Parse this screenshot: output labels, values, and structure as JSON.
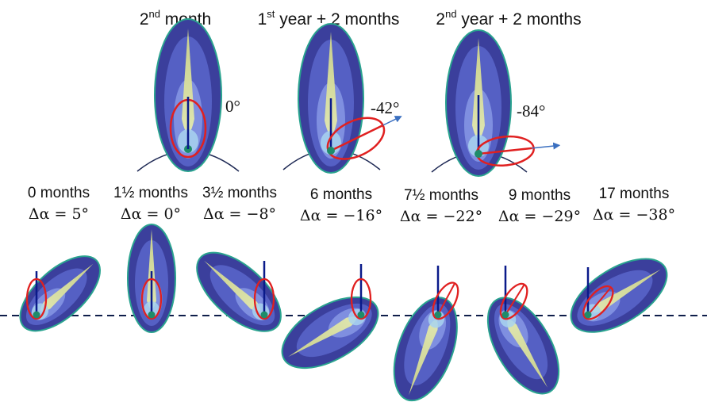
{
  "top_panels": [
    {
      "title_pre": "2",
      "title_sup": "nd",
      "title_post": " month",
      "angle": "0°",
      "tilt": 0
    },
    {
      "title_pre": "1",
      "title_sup": "st",
      "title_post": " year + 2 months",
      "angle": "-42°",
      "tilt": -42
    },
    {
      "title_pre": "2",
      "title_sup": "nd",
      "title_post": " year + 2 months",
      "angle": "-84°",
      "tilt": -84
    }
  ],
  "bottom_panels": [
    {
      "label": "0 months",
      "delta": "Δα = 5°",
      "tilt": 5
    },
    {
      "label": "1½ months",
      "delta": "Δα = 0°",
      "tilt": 0
    },
    {
      "label": "3½ months",
      "delta": "Δα = −8°",
      "tilt": -8
    },
    {
      "label": "6 months",
      "delta": "Δα = −16°",
      "tilt": -16
    },
    {
      "label": "7½ months",
      "delta": "Δα = −22°",
      "tilt": -22
    },
    {
      "label": "9 months",
      "delta": "Δα = −29°",
      "tilt": -29
    },
    {
      "label": "17 months",
      "delta": "Δα = −38°",
      "tilt": -38
    }
  ],
  "colors": {
    "outer": "#3b3f9c",
    "mid": "#5560c4",
    "inner": "#7f8fe0",
    "core": "#d8dfa4",
    "glow": "#a8d4ee",
    "outline": "#2aa38f",
    "vertical": "#0a1a8a",
    "red": "#e02020",
    "arrow": "#3a6fc0",
    "arc": "#1f2a55",
    "dashed": "#0f1e4a",
    "node": "#1e8c6a"
  }
}
